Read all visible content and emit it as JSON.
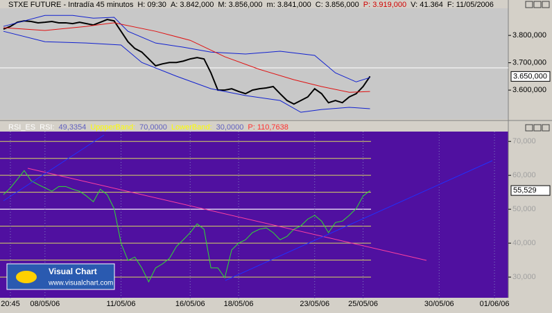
{
  "header": {
    "items": [
      {
        "text": "STXE FUTURE - Intradía 45 minutos",
        "color": "#000000"
      },
      {
        "text": "H: 09:30",
        "color": "#000000"
      },
      {
        "text": "A: 3.842,000",
        "color": "#000000"
      },
      {
        "text": "M: 3.856,000",
        "color": "#000000"
      },
      {
        "text": "m: 3.841,000",
        "color": "#000000"
      },
      {
        "text": "C: 3.856,000",
        "color": "#000000"
      },
      {
        "text": "P: 3.919,000",
        "color": "#d00000"
      },
      {
        "text": "V: 41.364",
        "color": "#000000"
      },
      {
        "text": "F: 11/05/2006",
        "color": "#000000"
      }
    ]
  },
  "rsi_header": {
    "items": [
      {
        "text": "RSI_ES",
        "color": "#ffffff"
      },
      {
        "text": "RSI:",
        "color": "#ffffff"
      },
      {
        "text": "49,3354",
        "color": "#6060c0"
      },
      {
        "text": "UppperBand:",
        "color": "#ffff00"
      },
      {
        "text": "70,0000",
        "color": "#6060c0"
      },
      {
        "text": "LowerBand:",
        "color": "#ffff00"
      },
      {
        "text": "30,0000",
        "color": "#6060c0"
      },
      {
        "text": "P: 110,7638",
        "color": "#ff3030"
      }
    ]
  },
  "logo": {
    "title": "Visual Chart",
    "url": "www.visualchart.com"
  },
  "chart_data": [
    {
      "type": "line",
      "ylim": [
        3494,
        3899
      ],
      "yticks": [
        {
          "value": 3800,
          "label": "3.800,000"
        },
        {
          "value": 3700,
          "label": "3.700,000"
        },
        {
          "value": 3600,
          "label": "3.600,000"
        }
      ],
      "price_tag": {
        "value": 3650,
        "label": "3.650,000"
      },
      "xlim": [
        0,
        73
      ],
      "series": [
        {
          "color": "#000000",
          "x": [
            0,
            1,
            2,
            3,
            4,
            5,
            6,
            7,
            8,
            9,
            10,
            11,
            12,
            13,
            14,
            15,
            16,
            17,
            18,
            19,
            20,
            21,
            22,
            23,
            24,
            25,
            26,
            27,
            28,
            29,
            30,
            31,
            32,
            33,
            34,
            35,
            36,
            37,
            38,
            39,
            40,
            41,
            42,
            43,
            44,
            45,
            46,
            47,
            48,
            49,
            50,
            51,
            52,
            53
          ],
          "values": [
            3823,
            3833,
            3848,
            3853,
            3851,
            3846,
            3848,
            3851,
            3846,
            3846,
            3843,
            3848,
            3843,
            3838,
            3848,
            3858,
            3853,
            3815,
            3777,
            3752,
            3739,
            3714,
            3689,
            3696,
            3701,
            3701,
            3706,
            3714,
            3719,
            3714,
            3663,
            3600,
            3600,
            3605,
            3595,
            3587,
            3600,
            3605,
            3608,
            3613,
            3587,
            3562,
            3549,
            3562,
            3575,
            3605,
            3587,
            3554,
            3562,
            3554,
            3575,
            3587,
            3613,
            3650
          ]
        },
        {
          "color": "#1020d0",
          "x": [
            0,
            3,
            6,
            10,
            13,
            16,
            18,
            22,
            26,
            30,
            35,
            40,
            45,
            48,
            51,
            53
          ],
          "values": [
            3833,
            3853,
            3873,
            3873,
            3863,
            3866,
            3815,
            3772,
            3757,
            3739,
            3732,
            3742,
            3727,
            3663,
            3630,
            3646
          ]
        },
        {
          "color": "#1020d0",
          "x": [
            0,
            6,
            12,
            17,
            20,
            25,
            30,
            35,
            40,
            43,
            46,
            50,
            53
          ],
          "values": [
            3815,
            3777,
            3772,
            3765,
            3701,
            3651,
            3605,
            3580,
            3562,
            3519,
            3529,
            3537,
            3532
          ]
        },
        {
          "color": "#e01010",
          "x": [
            0,
            6,
            12,
            16,
            22,
            27,
            32,
            37,
            42,
            46,
            50,
            53
          ],
          "values": [
            3828,
            3818,
            3833,
            3846,
            3815,
            3782,
            3722,
            3676,
            3638,
            3613,
            3592,
            3595
          ]
        }
      ]
    },
    {
      "type": "line",
      "ylim": [
        23.9,
        72.9
      ],
      "yticks": [
        {
          "value": 70,
          "label": "70,000"
        },
        {
          "value": 60,
          "label": "60,000"
        },
        {
          "value": 50,
          "label": "50,000"
        },
        {
          "value": 40,
          "label": "40,000"
        },
        {
          "value": 30,
          "label": "30,000"
        }
      ],
      "minor_yticks": [
        65,
        55,
        45,
        35
      ],
      "highlight_line": 50,
      "price_tag": {
        "value": 55.529,
        "label": "55,529"
      },
      "xlim": [
        0,
        73
      ],
      "xticks": [
        {
          "value": 1,
          "label": "20:45"
        },
        {
          "value": 6,
          "label": "08/05/06"
        },
        {
          "value": 17,
          "label": "11/05/06"
        },
        {
          "value": 27,
          "label": "16/05/06"
        },
        {
          "value": 34,
          "label": "18/05/06"
        },
        {
          "value": 45,
          "label": "23/05/06"
        },
        {
          "value": 52,
          "label": "25/05/06"
        },
        {
          "value": 63,
          "label": "30/05/06"
        },
        {
          "value": 71,
          "label": "01/06/06"
        }
      ],
      "series": [
        {
          "color": "#30e030",
          "values": [
            54.3,
            56.3,
            58.8,
            61.4,
            58.4,
            57.3,
            56.3,
            55.3,
            56.7,
            56.7,
            55.9,
            55.3,
            53.9,
            52.2,
            55.9,
            54.3,
            50.2,
            40.0,
            34.9,
            35.9,
            32.7,
            28.6,
            32.7,
            33.9,
            35.5,
            39.0,
            41.0,
            43.1,
            45.7,
            44.1,
            32.7,
            32.7,
            29.8,
            38.0,
            40.0,
            41.0,
            43.1,
            44.1,
            44.5,
            43.1,
            41.0,
            42.0,
            44.1,
            45.1,
            47.1,
            48.2,
            46.5,
            43.1,
            46.1,
            46.5,
            48.2,
            50.2,
            53.9,
            55.5
          ]
        }
      ]
    }
  ]
}
